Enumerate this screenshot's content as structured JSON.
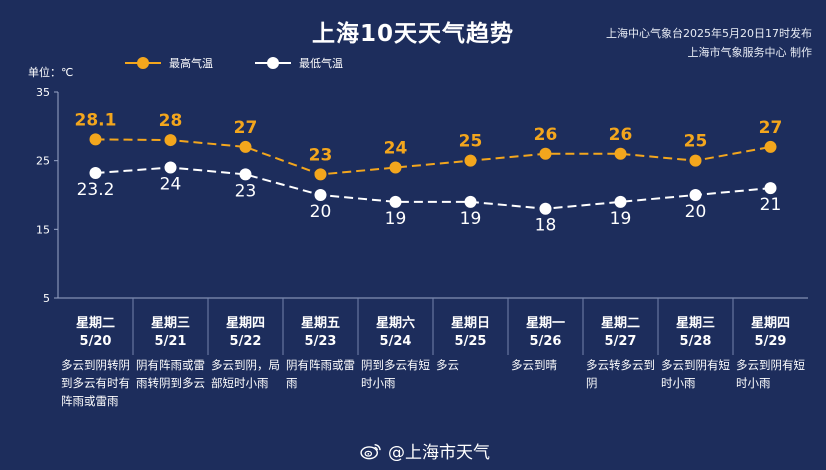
{
  "title": "上海10天天气趋势",
  "issuer": {
    "line1": "上海中心气象台2025年5月20日17时发布",
    "line2": "上海市气象服务中心 制作"
  },
  "unit_label": "单位：℃",
  "watermark": {
    "icon": "weibo-icon",
    "text": "@上海市天气"
  },
  "colors": {
    "background": "#1d2d5c",
    "high": "#f3a61d",
    "low": "#ffffff",
    "grid": "#8090b8"
  },
  "chart_data": {
    "type": "line",
    "title": "上海10天天气趋势",
    "ylabel": "单位：℃",
    "ylim": [
      5,
      35
    ],
    "yticks": [
      5,
      15,
      25,
      35
    ],
    "categories": [
      "5/20",
      "5/21",
      "5/22",
      "5/23",
      "5/24",
      "5/25",
      "5/26",
      "5/27",
      "5/28",
      "5/29"
    ],
    "series": [
      {
        "name": "最高气温",
        "values": [
          28.1,
          28,
          27,
          23,
          24,
          25,
          26,
          26,
          25,
          27
        ],
        "labels": [
          "28.1",
          "28",
          "27",
          "23",
          "24",
          "25",
          "26",
          "26",
          "25",
          "27"
        ],
        "color": "#f3a61d",
        "style": "dashed"
      },
      {
        "name": "最低气温",
        "values": [
          23.2,
          24,
          23,
          20,
          19,
          19,
          18,
          19,
          20,
          21
        ],
        "labels": [
          "23.2",
          "24",
          "23",
          "20",
          "19",
          "19",
          "18",
          "19",
          "20",
          "21"
        ],
        "color": "#ffffff",
        "style": "dashed"
      }
    ],
    "legend": "top-left",
    "grid": false
  },
  "days": [
    {
      "weekday": "星期二",
      "date": "5/20",
      "weather": "多云到阴转阴到多云有时有阵雨或雷雨"
    },
    {
      "weekday": "星期三",
      "date": "5/21",
      "weather": "阴有阵雨或雷雨转阴到多云"
    },
    {
      "weekday": "星期四",
      "date": "5/22",
      "weather": "多云到阴，局部短时小雨"
    },
    {
      "weekday": "星期五",
      "date": "5/23",
      "weather": "阴有阵雨或雷雨"
    },
    {
      "weekday": "星期六",
      "date": "5/24",
      "weather": "阴到多云有短时小雨"
    },
    {
      "weekday": "星期日",
      "date": "5/25",
      "weather": "多云"
    },
    {
      "weekday": "星期一",
      "date": "5/26",
      "weather": "多云到晴"
    },
    {
      "weekday": "星期二",
      "date": "5/27",
      "weather": "多云转多云到阴"
    },
    {
      "weekday": "星期三",
      "date": "5/28",
      "weather": "多云到阴有短时小雨"
    },
    {
      "weekday": "星期四",
      "date": "5/29",
      "weather": "多云到阴有短时小雨"
    }
  ]
}
